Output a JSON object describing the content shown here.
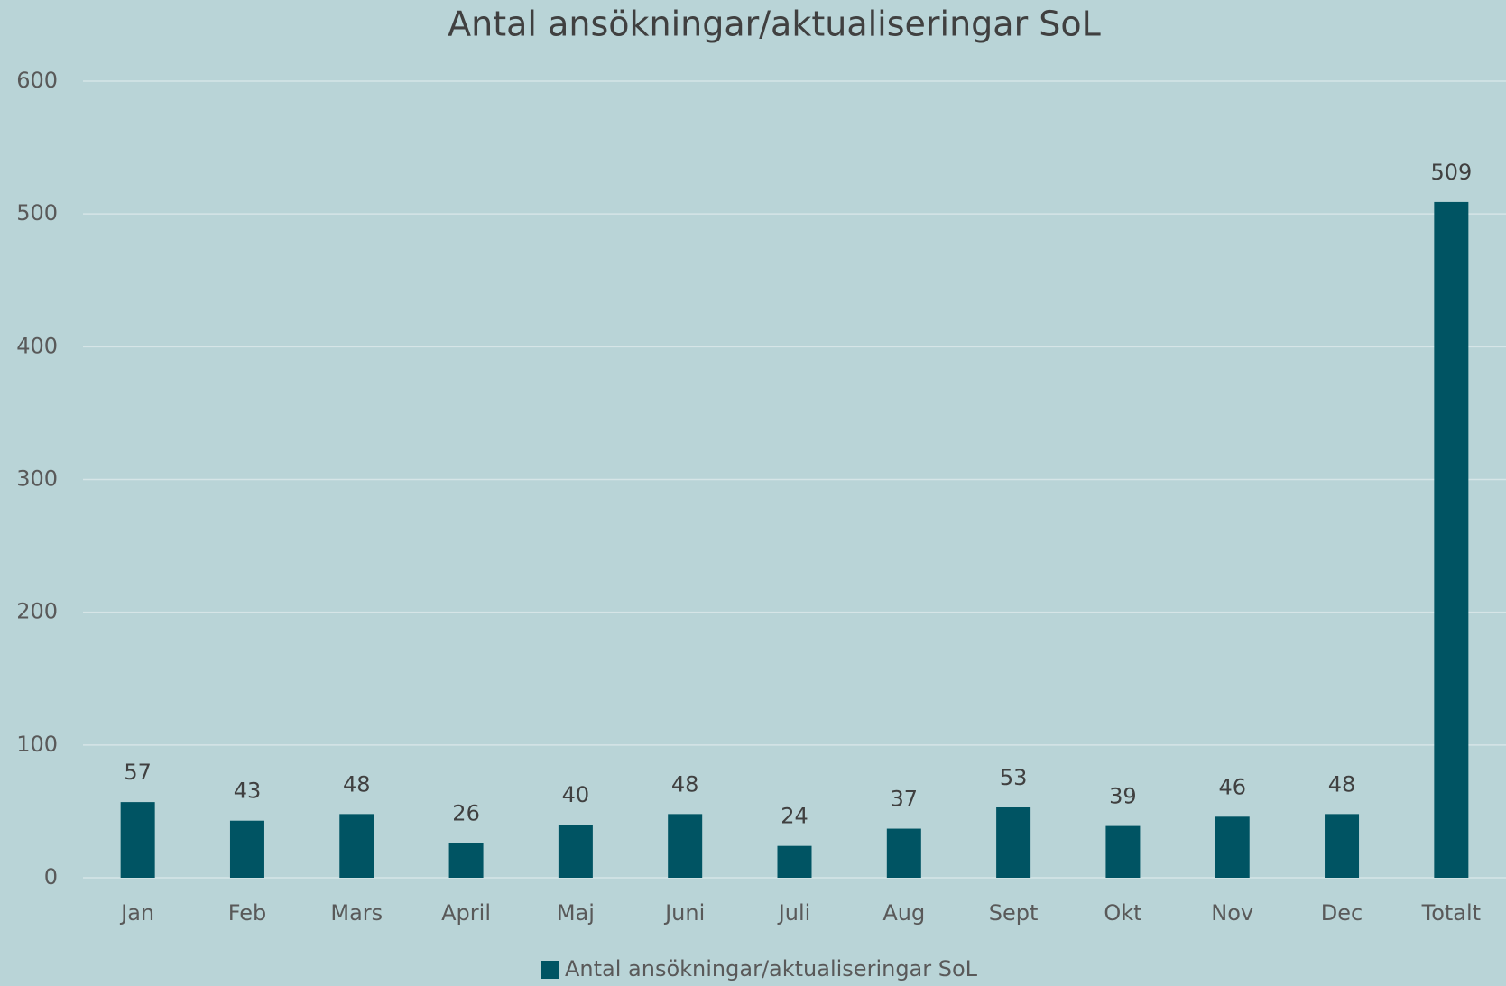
{
  "chart_data": {
    "type": "bar",
    "title": "Antal ansökningar/aktualiseringar SoL",
    "categories": [
      "Jan",
      "Feb",
      "Mars",
      "April",
      "Maj",
      "Juni",
      "Juli",
      "Aug",
      "Sept",
      "Okt",
      "Nov",
      "Dec",
      "Totalt"
    ],
    "series": [
      {
        "name": "Antal ansökningar/aktualiseringar SoL",
        "color": "#005463",
        "values": [
          57,
          43,
          48,
          26,
          40,
          48,
          24,
          37,
          53,
          39,
          46,
          48,
          509
        ]
      }
    ],
    "ylim": [
      0,
      600
    ],
    "yticks": [
      0,
      100,
      200,
      300,
      400,
      500,
      600
    ],
    "grid": true,
    "legend": "bottom"
  }
}
